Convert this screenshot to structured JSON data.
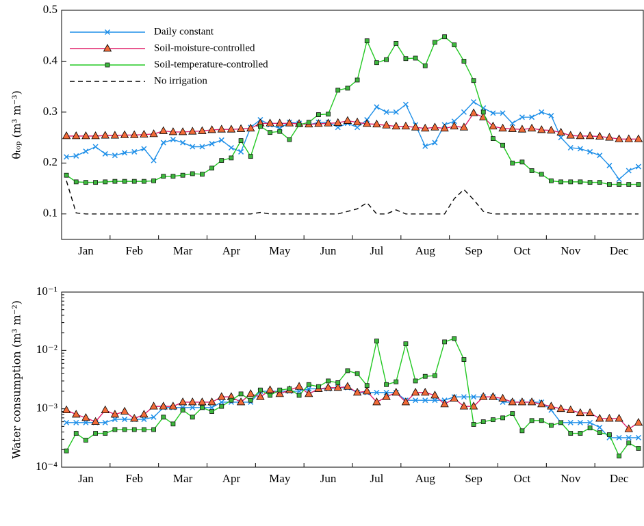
{
  "chart_data": [
    {
      "type": "line",
      "y_label": "θₜₒₚ (m³ m⁻³)",
      "categories": [
        "Jan",
        "Feb",
        "Mar",
        "Apr",
        "May",
        "Jun",
        "Jul",
        "Aug",
        "Sep",
        "Oct",
        "Nov",
        "Dec"
      ],
      "ylim": [
        0.05,
        0.5
      ],
      "yticks": [
        0.1,
        0.2,
        0.3,
        0.4,
        0.5
      ],
      "log_y": false,
      "legend": "upper left",
      "series": [
        {
          "name": "Daily constant",
          "color": "#1e8fe8",
          "marker": "x",
          "dash": false,
          "values": [
            [
              0.212,
              0.214,
              0.223,
              0.232,
              0.218
            ],
            [
              0.215,
              0.22,
              0.222,
              0.228,
              0.205
            ],
            [
              0.24,
              0.246,
              0.24,
              0.232,
              0.232
            ],
            [
              0.238,
              0.245,
              0.23,
              0.222,
              0.27
            ],
            [
              0.285,
              0.275,
              0.268,
              0.28,
              0.278
            ],
            [
              0.275,
              0.28,
              0.28,
              0.27,
              0.278
            ],
            [
              0.27,
              0.285,
              0.31,
              0.3,
              0.3
            ],
            [
              0.315,
              0.275,
              0.233,
              0.24,
              0.275
            ],
            [
              0.282,
              0.3,
              0.32,
              0.308,
              0.298
            ],
            [
              0.298,
              0.278,
              0.29,
              0.29,
              0.3
            ],
            [
              0.293,
              0.25,
              0.23,
              0.228,
              0.222
            ],
            [
              0.215,
              0.195,
              0.168,
              0.185,
              0.193
            ]
          ]
        },
        {
          "name": "Soil-moisture-controlled",
          "color": "#e0206a",
          "marker": "triangle",
          "dash": false,
          "values": [
            [
              0.253,
              0.253,
              0.253,
              0.253,
              0.254
            ],
            [
              0.254,
              0.255,
              0.255,
              0.256,
              0.257
            ],
            [
              0.263,
              0.261,
              0.261,
              0.262,
              0.263
            ],
            [
              0.265,
              0.266,
              0.266,
              0.267,
              0.268
            ],
            [
              0.278,
              0.278,
              0.278,
              0.278,
              0.277
            ],
            [
              0.276,
              0.277,
              0.278,
              0.279,
              0.283
            ],
            [
              0.28,
              0.277,
              0.276,
              0.274,
              0.272
            ],
            [
              0.272,
              0.27,
              0.268,
              0.27,
              0.268
            ],
            [
              0.272,
              0.27,
              0.298,
              0.29,
              0.272
            ],
            [
              0.268,
              0.267,
              0.266,
              0.268,
              0.265
            ],
            [
              0.264,
              0.26,
              0.254,
              0.253,
              0.253
            ],
            [
              0.252,
              0.25,
              0.247,
              0.247,
              0.247
            ]
          ]
        },
        {
          "name": "Soil-temperature-controlled",
          "color": "#22c822",
          "marker": "square",
          "dash": false,
          "values": [
            [
              0.176,
              0.163,
              0.162,
              0.162,
              0.163
            ],
            [
              0.164,
              0.164,
              0.164,
              0.164,
              0.165
            ],
            [
              0.174,
              0.174,
              0.176,
              0.179,
              0.178
            ],
            [
              0.19,
              0.205,
              0.21,
              0.244,
              0.213
            ],
            [
              0.272,
              0.26,
              0.262,
              0.246,
              0.275
            ],
            [
              0.28,
              0.295,
              0.296,
              0.343,
              0.347
            ],
            [
              0.363,
              0.44,
              0.397,
              0.403,
              0.435
            ],
            [
              0.405,
              0.406,
              0.391,
              0.437,
              0.448
            ],
            [
              0.432,
              0.4,
              0.362,
              0.3,
              0.248
            ],
            [
              0.235,
              0.2,
              0.202,
              0.185,
              0.178
            ],
            [
              0.165,
              0.163,
              0.163,
              0.163,
              0.162
            ],
            [
              0.162,
              0.158,
              0.158,
              0.158,
              0.158
            ]
          ]
        },
        {
          "name": "No irrigation",
          "color": "#000000",
          "marker": "none",
          "dash": true,
          "values": [
            [
              0.165,
              0.102,
              0.1,
              0.1,
              0.1
            ],
            [
              0.1,
              0.1,
              0.1,
              0.1,
              0.1
            ],
            [
              0.1,
              0.1,
              0.1,
              0.1,
              0.1
            ],
            [
              0.1,
              0.1,
              0.1,
              0.1,
              0.1
            ],
            [
              0.103,
              0.1,
              0.1,
              0.1,
              0.1
            ],
            [
              0.1,
              0.1,
              0.1,
              0.1,
              0.105
            ],
            [
              0.11,
              0.122,
              0.1,
              0.1,
              0.108
            ],
            [
              0.1,
              0.1,
              0.1,
              0.1,
              0.1
            ],
            [
              0.13,
              0.148,
              0.128,
              0.105,
              0.1
            ],
            [
              0.1,
              0.1,
              0.1,
              0.1,
              0.1
            ],
            [
              0.1,
              0.1,
              0.1,
              0.1,
              0.1
            ],
            [
              0.1,
              0.1,
              0.1,
              0.1,
              0.1
            ]
          ]
        }
      ]
    },
    {
      "type": "line",
      "y_label": "Water consumption (m³ m⁻²)",
      "categories": [
        "Jan",
        "Feb",
        "Mar",
        "Apr",
        "May",
        "Jun",
        "Jul",
        "Aug",
        "Sep",
        "Oct",
        "Nov",
        "Dec"
      ],
      "ylim": [
        0.0001,
        0.1
      ],
      "log_y": true,
      "yticks": [
        {
          "value": 0.0001,
          "label": "10⁻⁴"
        },
        {
          "value": 0.001,
          "label": "10⁻³"
        },
        {
          "value": 0.01,
          "label": "10⁻²"
        },
        {
          "value": 0.1,
          "label": "10⁻¹"
        }
      ],
      "series": [
        {
          "name": "Daily constant",
          "color": "#1e8fe8",
          "marker": "x",
          "values": [
            [
              0.00058,
              0.00058,
              0.00058,
              0.00058,
              0.00058
            ],
            [
              0.00066,
              0.00066,
              0.00066,
              0.00066,
              0.00072
            ],
            [
              0.00105,
              0.00105,
              0.00105,
              0.00105,
              0.00105
            ],
            [
              0.00105,
              0.0013,
              0.0013,
              0.0013,
              0.0013
            ],
            [
              0.002,
              0.002,
              0.002,
              0.002,
              0.002
            ],
            [
              0.0022,
              0.0022,
              0.0022,
              0.0023,
              0.0023
            ],
            [
              0.0019,
              0.0019,
              0.0019,
              0.0019,
              0.0019
            ],
            [
              0.0014,
              0.0014,
              0.0014,
              0.0014,
              0.0014
            ],
            [
              0.0016,
              0.0016,
              0.0016,
              0.0016,
              0.0016
            ],
            [
              0.0013,
              0.0013,
              0.0013,
              0.0013,
              0.0013
            ],
            [
              0.00095,
              0.00058,
              0.00058,
              0.00058,
              0.00058
            ],
            [
              0.00048,
              0.00032,
              0.00032,
              0.00032,
              0.00032
            ]
          ]
        },
        {
          "name": "Soil-moisture-controlled",
          "color": "#e0206a",
          "marker": "triangle",
          "values": [
            [
              0.00095,
              0.0008,
              0.0007,
              0.0006,
              0.00095
            ],
            [
              0.0008,
              0.0009,
              0.00068,
              0.0008,
              0.0011
            ],
            [
              0.0011,
              0.0011,
              0.0013,
              0.0013,
              0.0013
            ],
            [
              0.0013,
              0.0016,
              0.0016,
              0.0013,
              0.0018
            ],
            [
              0.0016,
              0.0021,
              0.0018,
              0.0021,
              0.0024
            ],
            [
              0.0018,
              0.0022,
              0.0023,
              0.0023,
              0.0024
            ],
            [
              0.0019,
              0.002,
              0.0013,
              0.0016,
              0.0019
            ],
            [
              0.0013,
              0.0019,
              0.0019,
              0.0017,
              0.0012
            ],
            [
              0.0015,
              0.0011,
              0.0011,
              0.0016,
              0.0016
            ],
            [
              0.0015,
              0.0013,
              0.0013,
              0.0013,
              0.0012
            ],
            [
              0.0011,
              0.001,
              0.00095,
              0.00085,
              0.00085
            ],
            [
              0.00068,
              0.00068,
              0.00068,
              0.00045,
              0.00058
            ]
          ]
        },
        {
          "name": "Soil-temperature-controlled",
          "color": "#22c822",
          "marker": "square",
          "values": [
            [
              0.00019,
              0.00038,
              0.00029,
              0.00038,
              0.00038
            ],
            [
              0.00044,
              0.00044,
              0.00044,
              0.00044,
              0.00044
            ],
            [
              0.00072,
              0.00055,
              0.00095,
              0.00072,
              0.00105
            ],
            [
              0.0009,
              0.0011,
              0.0014,
              0.0018,
              0.0014
            ],
            [
              0.0021,
              0.0017,
              0.0021,
              0.0022,
              0.0017
            ],
            [
              0.0026,
              0.0024,
              0.003,
              0.0028,
              0.0045
            ],
            [
              0.004,
              0.0025,
              0.0145,
              0.0026,
              0.0029
            ],
            [
              0.013,
              0.003,
              0.0036,
              0.0037,
              0.014
            ],
            [
              0.016,
              0.007,
              0.00054,
              0.0006,
              0.00065
            ],
            [
              0.0007,
              0.00083,
              0.00042,
              0.00063,
              0.00063
            ],
            [
              0.00052,
              0.00058,
              0.00038,
              0.00038,
              0.00047
            ],
            [
              0.00039,
              0.00036,
              0.000155,
              0.00026,
              0.00021
            ]
          ]
        }
      ]
    }
  ]
}
